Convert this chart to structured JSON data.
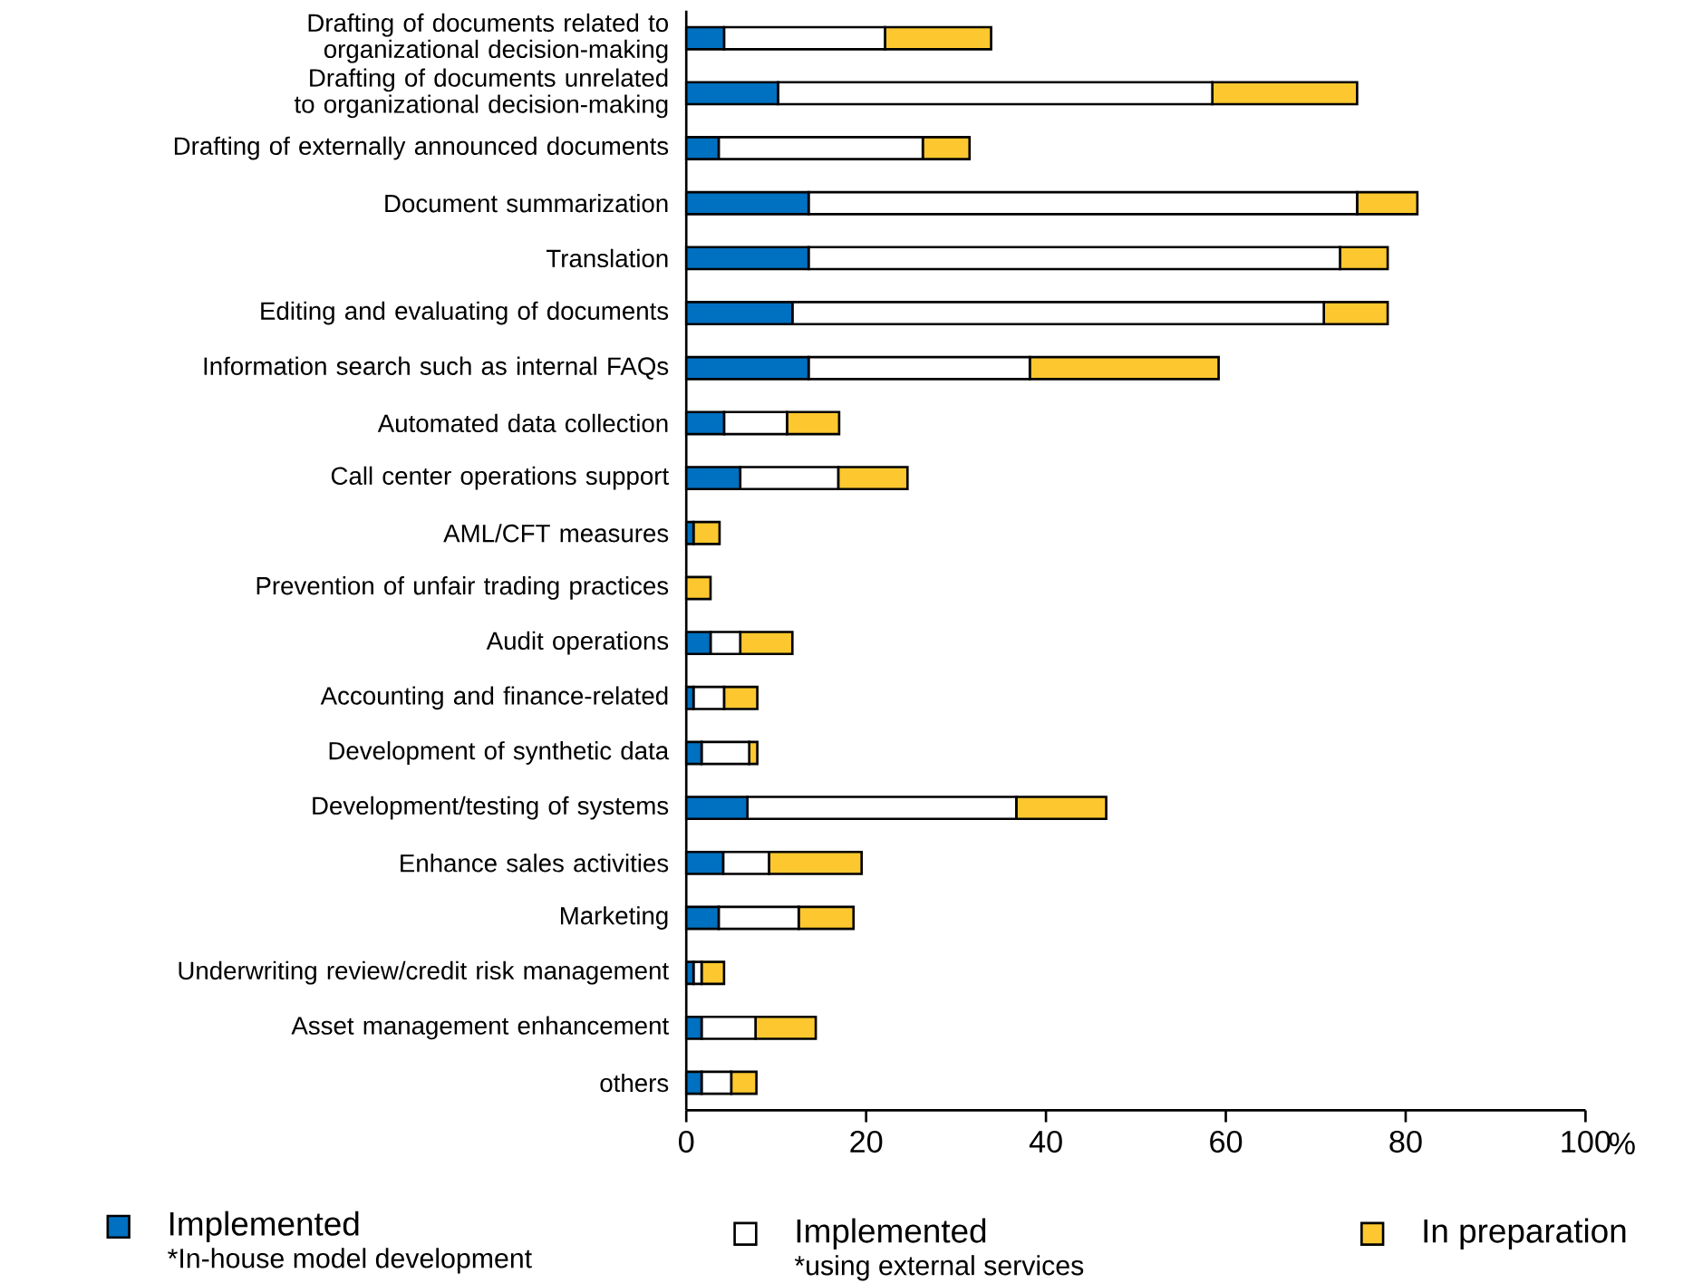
{
  "chart_data": {
    "type": "bar",
    "orientation": "horizontal",
    "stacked": true,
    "xlabel": "%",
    "categories": [
      "Drafting of documents related to organizational decision-making",
      "Drafting of documents unrelated to organizational decision-making",
      "Drafting of externally announced documents",
      "Document summarization",
      "Translation",
      "Editing and evaluating of documents",
      "Information search such as internal FAQs",
      "Automated data collection",
      "Call center operations support",
      "AML/CFT measures",
      "Prevention of unfair trading practices",
      "Audit operations",
      "Accounting and finance-related",
      "Development of synthetic data",
      "Development/testing of systems",
      "Enhance sales activities",
      "Marketing",
      "Underwriting review/credit risk management",
      "Asset management enhancement",
      "others"
    ],
    "series": [
      {
        "name": "Implemented",
        "color": "#0070c0",
        "values": [
          4.2,
          10.2,
          3.6,
          13.6,
          13.6,
          11.8,
          13.6,
          4.2,
          6.0,
          0.8,
          0,
          2.7,
          0.8,
          1.7,
          6.8,
          4.1,
          3.6,
          0.8,
          1.7,
          1.7
        ]
      },
      {
        "name": "Implemented",
        "color": "#ffffff",
        "values": [
          17.9,
          48.3,
          22.7,
          61.0,
          59.1,
          59.1,
          24.6,
          7.0,
          10.9,
          0,
          0,
          3.3,
          3.4,
          5.3,
          29.9,
          5.1,
          8.9,
          0.9,
          6.0,
          3.3
        ]
      },
      {
        "name": "In preparation",
        "color": "#fdc82f",
        "values": [
          11.8,
          16.1,
          5.2,
          6.7,
          5.3,
          7.1,
          21.0,
          5.8,
          7.7,
          2.9,
          2.7,
          5.8,
          3.7,
          0.9,
          10.0,
          10.3,
          6.1,
          2.5,
          6.7,
          2.8
        ]
      }
    ],
    "annotations": [
      "*In-house model development",
      "*using external services"
    ],
    "xlim": [
      0,
      100
    ],
    "xticks": [
      0,
      20,
      40,
      60,
      80,
      100
    ],
    "grid": false,
    "legend": "bottom"
  }
}
